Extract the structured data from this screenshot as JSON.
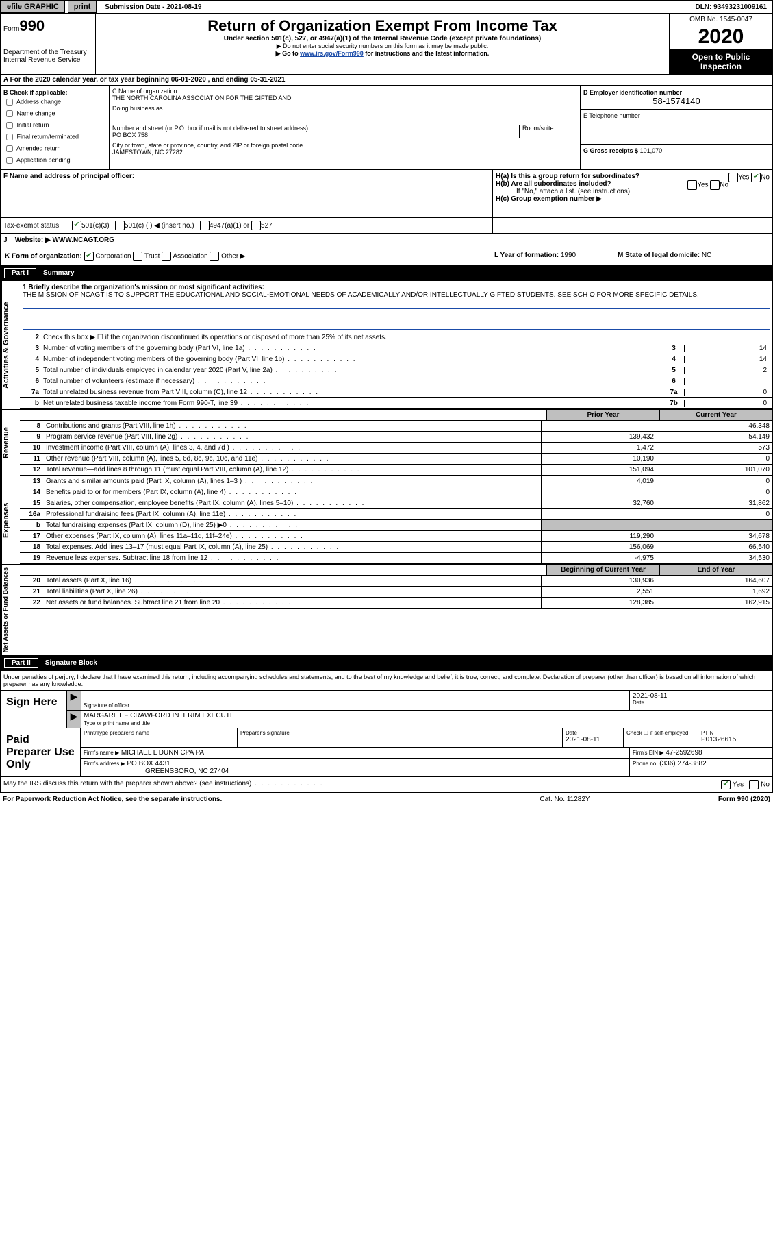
{
  "topbar": {
    "efile": "efile GRAPHIC",
    "print": "print",
    "sub_label": "Submission Date - 2021-08-19",
    "dln": "DLN: 93493231009161"
  },
  "header": {
    "form_small": "Form",
    "form_num": "990",
    "dept": "Department of the Treasury\nInternal Revenue Service",
    "title": "Return of Organization Exempt From Income Tax",
    "sub1": "Under section 501(c), 527, or 4947(a)(1) of the Internal Revenue Code (except private foundations)",
    "sub2": "▶ Do not enter social security numbers on this form as it may be made public.",
    "sub3_prefix": "▶ Go to ",
    "sub3_link": "www.irs.gov/Form990",
    "sub3_suffix": " for instructions and the latest information.",
    "omb": "OMB No. 1545-0047",
    "year": "2020",
    "open": "Open to Public Inspection"
  },
  "line_a": "A For the 2020 calendar year, or tax year beginning 06-01-2020   , and ending 05-31-2021",
  "col_b": {
    "header": "B Check if applicable:",
    "addr": "Address change",
    "name": "Name change",
    "initial": "Initial return",
    "final": "Final return/terminated",
    "amended": "Amended return",
    "app": "Application pending"
  },
  "col_c": {
    "name_label": "C Name of organization",
    "name": "THE NORTH CAROLINA ASSOCIATION FOR THE GIFTED AND",
    "dba_label": "Doing business as",
    "street_label": "Number and street (or P.O. box if mail is not delivered to street address)",
    "room_label": "Room/suite",
    "street": "PO BOX 758",
    "city_label": "City or town, state or province, country, and ZIP or foreign postal code",
    "city": "JAMESTOWN, NC  27282"
  },
  "col_d": {
    "ein_label": "D Employer identification number",
    "ein": "58-1574140",
    "tel_label": "E Telephone number",
    "gross_label": "G Gross receipts $",
    "gross": "101,070"
  },
  "row_f": {
    "label": "F  Name and address of principal officer:"
  },
  "row_h": {
    "ha_label": "H(a)  Is this a group return for subordinates?",
    "hb_label": "H(b)  Are all subordinates included?",
    "hb_note": "If \"No,\" attach a list. (see instructions)",
    "hc_label": "H(c)  Group exemption number ▶",
    "yes": "Yes",
    "no": "No"
  },
  "tax_exempt": {
    "label": "Tax-exempt status:",
    "opt1": "501(c)(3)",
    "opt2": "501(c) (  ) ◀ (insert no.)",
    "opt3": "4947(a)(1) or",
    "opt4": "527"
  },
  "website": {
    "j_label": "J",
    "label": "Website: ▶",
    "value": "WWW.NCAGT.ORG"
  },
  "row_k": {
    "label": "K Form of organization:",
    "corp": "Corporation",
    "trust": "Trust",
    "assoc": "Association",
    "other": "Other ▶",
    "l_label": "L Year of formation:",
    "l_val": "1990",
    "m_label": "M State of legal domicile:",
    "m_val": "NC"
  },
  "part1": {
    "num": "Part I",
    "title": "Summary"
  },
  "vtabs": {
    "gov": "Activities & Governance",
    "rev": "Revenue",
    "exp": "Expenses",
    "net": "Net Assets or Fund Balances"
  },
  "mission": {
    "label": "1  Briefly describe the organization's mission or most significant activities:",
    "text": "THE MISSION OF NCAGT IS TO SUPPORT THE EDUCATIONAL AND SOCIAL-EMOTIONAL NEEDS OF ACADEMICALLY AND/OR INTELLECTUALLY GIFTED STUDENTS. SEE SCH O FOR MORE SPECIFIC DETAILS."
  },
  "gov_lines": {
    "l2": "Check this box ▶ ☐  if the organization discontinued its operations or disposed of more than 25% of its net assets.",
    "l3": "Number of voting members of the governing body (Part VI, line 1a)",
    "l3v": "14",
    "l4": "Number of independent voting members of the governing body (Part VI, line 1b)",
    "l4v": "14",
    "l5": "Total number of individuals employed in calendar year 2020 (Part V, line 2a)",
    "l5v": "2",
    "l6": "Total number of volunteers (estimate if necessary)",
    "l6v": "",
    "l7a": "Total unrelated business revenue from Part VIII, column (C), line 12",
    "l7av": "0",
    "l7b": "Net unrelated business taxable income from Form 990-T, line 39",
    "l7bv": "0"
  },
  "fin_header": {
    "prior": "Prior Year",
    "current": "Current Year",
    "begin": "Beginning of Current Year",
    "end": "End of Year"
  },
  "revenue": [
    {
      "n": "8",
      "t": "Contributions and grants (Part VIII, line 1h)",
      "p": "",
      "c": "46,348"
    },
    {
      "n": "9",
      "t": "Program service revenue (Part VIII, line 2g)",
      "p": "139,432",
      "c": "54,149"
    },
    {
      "n": "10",
      "t": "Investment income (Part VIII, column (A), lines 3, 4, and 7d )",
      "p": "1,472",
      "c": "573"
    },
    {
      "n": "11",
      "t": "Other revenue (Part VIII, column (A), lines 5, 6d, 8c, 9c, 10c, and 11e)",
      "p": "10,190",
      "c": "0"
    },
    {
      "n": "12",
      "t": "Total revenue—add lines 8 through 11 (must equal Part VIII, column (A), line 12)",
      "p": "151,094",
      "c": "101,070"
    }
  ],
  "expenses": [
    {
      "n": "13",
      "t": "Grants and similar amounts paid (Part IX, column (A), lines 1–3 )",
      "p": "4,019",
      "c": "0"
    },
    {
      "n": "14",
      "t": "Benefits paid to or for members (Part IX, column (A), line 4)",
      "p": "",
      "c": "0"
    },
    {
      "n": "15",
      "t": "Salaries, other compensation, employee benefits (Part IX, column (A), lines 5–10)",
      "p": "32,760",
      "c": "31,862"
    },
    {
      "n": "16a",
      "t": "Professional fundraising fees (Part IX, column (A), line 11e)",
      "p": "",
      "c": "0"
    },
    {
      "n": "b",
      "t": "Total fundraising expenses (Part IX, column (D), line 25) ▶0",
      "p": "SHADED",
      "c": "SHADED"
    },
    {
      "n": "17",
      "t": "Other expenses (Part IX, column (A), lines 11a–11d, 11f–24e)",
      "p": "119,290",
      "c": "34,678"
    },
    {
      "n": "18",
      "t": "Total expenses. Add lines 13–17 (must equal Part IX, column (A), line 25)",
      "p": "156,069",
      "c": "66,540"
    },
    {
      "n": "19",
      "t": "Revenue less expenses. Subtract line 18 from line 12",
      "p": "-4,975",
      "c": "34,530"
    }
  ],
  "netassets": [
    {
      "n": "20",
      "t": "Total assets (Part X, line 16)",
      "p": "130,936",
      "c": "164,607"
    },
    {
      "n": "21",
      "t": "Total liabilities (Part X, line 26)",
      "p": "2,551",
      "c": "1,692"
    },
    {
      "n": "22",
      "t": "Net assets or fund balances. Subtract line 21 from line 20",
      "p": "128,385",
      "c": "162,915"
    }
  ],
  "part2": {
    "num": "Part II",
    "title": "Signature Block"
  },
  "perjury": "Under penalties of perjury, I declare that I have examined this return, including accompanying schedules and statements, and to the best of my knowledge and belief, it is true, correct, and complete. Declaration of preparer (other than officer) is based on all information of which preparer has any knowledge.",
  "sign": {
    "label": "Sign Here",
    "sig_officer": "Signature of officer",
    "date_label": "Date",
    "date": "2021-08-11",
    "name": "MARGARET F CRAWFORD  INTERIM EXECUTI",
    "name_label": "Type or print name and title"
  },
  "paid": {
    "label": "Paid Preparer Use Only",
    "print_label": "Print/Type preparer's name",
    "sig_label": "Preparer's signature",
    "date_label": "Date",
    "date": "2021-08-11",
    "check_label": "Check ☐ if self-employed",
    "ptin_label": "PTIN",
    "ptin": "P01326615",
    "firm_name_label": "Firm's name    ▶",
    "firm_name": "MICHAEL L DUNN CPA PA",
    "firm_ein_label": "Firm's EIN ▶",
    "firm_ein": "47-2592698",
    "firm_addr_label": "Firm's address ▶",
    "firm_addr1": "PO BOX 4431",
    "firm_addr2": "GREENSBORO, NC  27404",
    "phone_label": "Phone no.",
    "phone": "(336) 274-3882"
  },
  "discuss": {
    "q": "May the IRS discuss this return with the preparer shown above? (see instructions)",
    "yes": "Yes",
    "no": "No"
  },
  "footer": {
    "left": "For Paperwork Reduction Act Notice, see the separate instructions.",
    "mid": "Cat. No. 11282Y",
    "right": "Form 990 (2020)"
  }
}
